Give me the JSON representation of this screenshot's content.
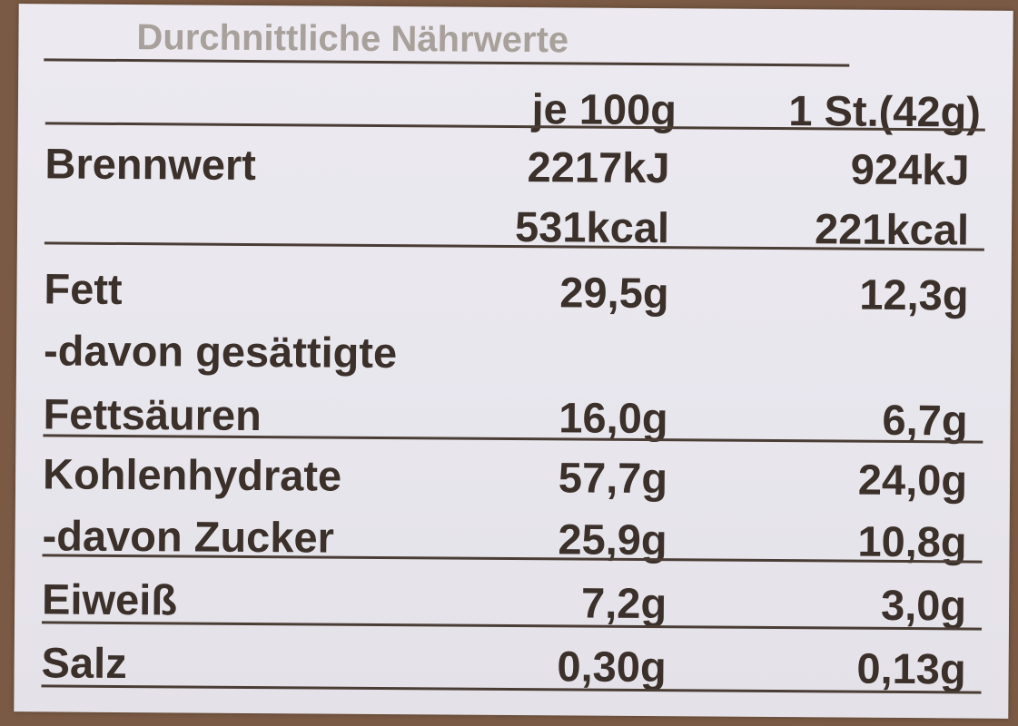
{
  "title": "Durchnittliche Nährwerte",
  "header": {
    "col1": "je 100g",
    "col2": "1 St.(42g)"
  },
  "rows": [
    {
      "label": "Brennwert",
      "per100": "2217kJ",
      "perPiece": "924kJ"
    },
    {
      "label": "",
      "per100": "531kcal",
      "perPiece": "221kcal"
    },
    {
      "label": "Fett",
      "per100": "29,5g",
      "perPiece": "12,3g"
    },
    {
      "label": "-davon gesättigte",
      "per100": "",
      "perPiece": ""
    },
    {
      "label": "Fettsäuren",
      "per100": "16,0g",
      "perPiece": "6,7g"
    },
    {
      "label": "Kohlenhydrate",
      "per100": "57,7g",
      "perPiece": "24,0g"
    },
    {
      "label": "-davon Zucker",
      "per100": "25,9g",
      "perPiece": "10,8g"
    },
    {
      "label": "Eiweiß",
      "per100": "7,2g",
      "perPiece": "3,0g"
    },
    {
      "label": "Salz",
      "per100": "0,30g",
      "perPiece": "0,13g"
    }
  ]
}
